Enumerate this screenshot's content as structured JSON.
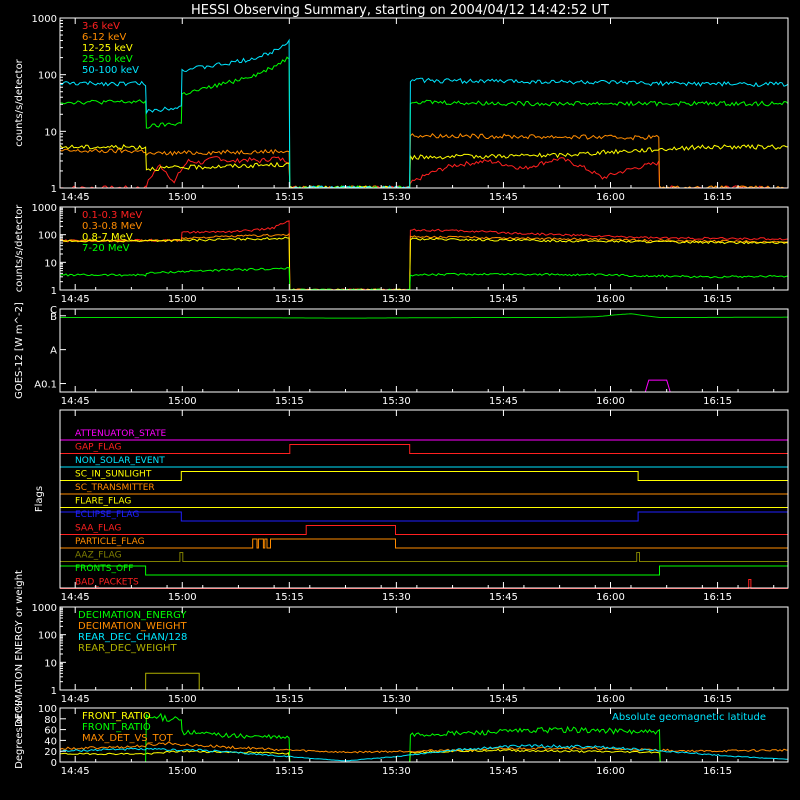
{
  "title": "HESSI Observing Summary, starting on 2004/04/12 14:42:52 UT",
  "x_ticks": [
    "14:45",
    "15:00",
    "15:15",
    "15:30",
    "15:45",
    "16:00",
    "16:15"
  ],
  "x_tick_minutes": [
    2.13,
    17.13,
    32.13,
    47.13,
    62.13,
    77.13,
    92.13
  ],
  "x_range_minutes": [
    0,
    102
  ],
  "chart_data": [
    {
      "type": "line",
      "id": "lowE",
      "ylabel": "counts/s/detector",
      "yscale": "log",
      "ylim": [
        1,
        1000
      ],
      "yticks": [
        "1",
        "10",
        "100",
        "1000"
      ],
      "ytick_values": [
        1,
        10,
        100,
        1000
      ],
      "legend_position": "top-left",
      "series": [
        {
          "name": "3-6 keV",
          "color": "#ff2020",
          "x": [
            0,
            12.0,
            12.1,
            14,
            16,
            18,
            20,
            22,
            24,
            26,
            28,
            30,
            32.1,
            32.2,
            49,
            49.1,
            55,
            60,
            65,
            70,
            76,
            83.9,
            84,
            102
          ],
          "y": [
            1,
            1,
            1.1,
            2.5,
            1.2,
            3,
            2.8,
            3.5,
            2.9,
            3.2,
            3.0,
            3.4,
            3.0,
            1,
            1,
            1.2,
            2.5,
            3,
            2.2,
            3.3,
            1.5,
            2.8,
            1,
            1
          ]
        },
        {
          "name": "6-12 keV",
          "color": "#ff8c00",
          "x": [
            0,
            12.0,
            12.1,
            18,
            24,
            32.1,
            32.2,
            49,
            49.1,
            60,
            70,
            80,
            83.9,
            84,
            102
          ],
          "y": [
            4.5,
            4.5,
            4.0,
            4.2,
            4.3,
            4.5,
            1,
            1,
            8.5,
            8.2,
            8.0,
            7.8,
            8.0,
            1,
            1
          ]
        },
        {
          "name": "12-25 keV",
          "color": "#ffff00",
          "x": [
            0,
            12.0,
            12.1,
            32.1,
            32.2,
            49,
            49.1,
            70,
            90,
            102
          ],
          "y": [
            5.3,
            5.3,
            2.2,
            2.6,
            1,
            1,
            3.5,
            3.8,
            5.3,
            5.3
          ]
        },
        {
          "name": "25-50 keV",
          "color": "#00ff00",
          "x": [
            0,
            12.0,
            12.1,
            17,
            17.1,
            20,
            24,
            28,
            30,
            32.1,
            32.2,
            49,
            49.1,
            55,
            65,
            75,
            85,
            95,
            102
          ],
          "y": [
            33,
            33,
            12,
            14,
            45,
            55,
            75,
            105,
            140,
            200,
            1,
            1,
            34,
            32,
            31,
            31,
            31,
            31,
            31
          ]
        },
        {
          "name": "50-100 keV",
          "color": "#00e5ff",
          "x": [
            0,
            12.0,
            12.1,
            17,
            17.1,
            20,
            24,
            28,
            30,
            32.1,
            32.2,
            49,
            49.1,
            55,
            65,
            75,
            85,
            95,
            102
          ],
          "y": [
            70,
            70,
            22,
            28,
            120,
            135,
            160,
            205,
            260,
            400,
            1,
            1,
            80,
            78,
            76,
            73,
            70,
            68,
            68
          ]
        }
      ]
    },
    {
      "type": "line",
      "id": "highE",
      "ylabel": "counts/s/detector",
      "yscale": "log",
      "ylim": [
        1,
        1000
      ],
      "yticks": [
        "1",
        "10",
        "100",
        "1000"
      ],
      "ytick_values": [
        1,
        10,
        100,
        1000
      ],
      "legend_position": "top-left",
      "series": [
        {
          "name": "0.1-0.3 MeV",
          "color": "#ff2020",
          "x": [
            0,
            10,
            15,
            17,
            17.1,
            24,
            28,
            30,
            32.1,
            32.2,
            49,
            49.1,
            55,
            65,
            75,
            85,
            102
          ],
          "y": [
            60,
            62,
            64,
            65,
            120,
            130,
            150,
            180,
            300,
            1,
            1,
            150,
            140,
            110,
            90,
            75,
            70
          ]
        },
        {
          "name": "0.3-0.8 MeV",
          "color": "#ff8c00",
          "x": [
            0,
            17,
            17.1,
            32.1,
            32.2,
            49,
            49.1,
            65,
            85,
            102
          ],
          "y": [
            60,
            62,
            75,
            100,
            1,
            1,
            85,
            75,
            60,
            55
          ]
        },
        {
          "name": "0.8-7 MeV",
          "color": "#ffff00",
          "x": [
            0,
            17,
            32.1,
            32.2,
            49,
            49.1,
            65,
            85,
            102
          ],
          "y": [
            58,
            62,
            75,
            1,
            1,
            70,
            62,
            55,
            50
          ]
        },
        {
          "name": "7-20 MeV",
          "color": "#00ff00",
          "x": [
            0,
            12,
            12.1,
            20,
            32.1,
            32.2,
            49,
            49.1,
            60,
            75,
            90,
            102
          ],
          "y": [
            3.5,
            3.5,
            4,
            5,
            6,
            1,
            1,
            3.5,
            3.8,
            3.5,
            3.0,
            3.2
          ]
        }
      ]
    },
    {
      "type": "line",
      "id": "goes",
      "ylabel": "GOES-12 [W m^-2]",
      "yscale": "log",
      "ylim": [
        -8.25,
        -5.8
      ],
      "yticks": [
        "A0.1",
        "A",
        "B",
        "C"
      ],
      "ytick_values": [
        -8,
        -7,
        -6,
        -5
      ],
      "series": [
        {
          "name": "",
          "color": "#00dd00",
          "x": [
            0,
            20,
            40,
            60,
            70,
            75,
            78,
            80,
            82,
            84,
            90,
            102
          ],
          "y": [
            -6.05,
            -6.05,
            -6.07,
            -6.05,
            -6.05,
            -6.03,
            -5.97,
            -5.94,
            -6.0,
            -6.05,
            -6.05,
            -6.04
          ]
        },
        {
          "name": "",
          "color": "#ff00ff",
          "x": [
            0,
            82,
            82.5,
            85,
            85.5,
            102
          ],
          "y": [
            -8.25,
            -8.25,
            -7.9,
            -7.9,
            -8.25,
            -8.25
          ]
        }
      ]
    },
    {
      "type": "step",
      "id": "flags",
      "ylabel": "Flags",
      "flags": [
        {
          "name": "ATTENUATOR_STATE",
          "color": "#ff00ff",
          "changes": []
        },
        {
          "name": "GAP_FLAG",
          "color": "#ff2020",
          "changes": [
            [
              32.2,
              1
            ],
            [
              49,
              0
            ]
          ]
        },
        {
          "name": "NON_SOLAR_EVENT",
          "color": "#00e5ff",
          "changes": []
        },
        {
          "name": "SC_IN_SUNLIGHT",
          "color": "#ffff00",
          "changes": [
            [
              0,
              0
            ],
            [
              17,
              1
            ],
            [
              81,
              0
            ]
          ]
        },
        {
          "name": "SC_TRANSMITTER",
          "color": "#ff8c00",
          "changes": []
        },
        {
          "name": "FLARE_FLAG",
          "color": "#ffff00",
          "changes": []
        },
        {
          "name": "ECLIPSE_FLAG",
          "color": "#2020ff",
          "changes": [
            [
              0,
              1
            ],
            [
              17,
              0
            ],
            [
              81,
              1
            ]
          ]
        },
        {
          "name": "SAA_FLAG",
          "color": "#ff2020",
          "changes": [
            [
              34.5,
              1
            ],
            [
              47,
              0
            ]
          ]
        },
        {
          "name": "PARTICLE_FLAG",
          "color": "#ff8c00",
          "changes": [
            [
              27,
              1
            ],
            [
              27.6,
              0
            ],
            [
              27.8,
              1
            ],
            [
              28.5,
              0
            ],
            [
              28.7,
              1
            ],
            [
              29,
              0
            ],
            [
              29.5,
              1
            ],
            [
              47,
              0
            ]
          ]
        },
        {
          "name": "AAZ_FLAG",
          "color": "#808000",
          "changes": [
            [
              16.8,
              1
            ],
            [
              17.2,
              0
            ],
            [
              80.8,
              1
            ],
            [
              81.2,
              0
            ]
          ]
        },
        {
          "name": "FRONTS_OFF",
          "color": "#00ff00",
          "changes": [
            [
              0,
              1
            ],
            [
              12,
              0
            ],
            [
              84,
              1
            ]
          ]
        },
        {
          "name": "BAD_PACKETS",
          "color": "#ff2020",
          "changes": [
            [
              96.5,
              1
            ],
            [
              96.8,
              0
            ]
          ]
        }
      ]
    },
    {
      "type": "step",
      "id": "decimation",
      "ylabel": "DECIMATION ENERGY or weight",
      "yscale": "log",
      "ylim": [
        1,
        1000
      ],
      "yticks": [
        "1",
        "10",
        "100",
        "1000"
      ],
      "ytick_values": [
        1,
        10,
        100,
        1000
      ],
      "legend_position": "top-left",
      "series": [
        {
          "name": "DECIMATION_ENERGY",
          "color": "#00ff00",
          "x": [],
          "y": []
        },
        {
          "name": "DECIMATION_WEIGHT",
          "color": "#ff8c00",
          "x": [],
          "y": []
        },
        {
          "name": "REAR_DEC_CHAN/128",
          "color": "#00e5ff",
          "x": [],
          "y": []
        },
        {
          "name": "REAR_DEC_WEIGHT",
          "color": "#b0b000",
          "x": [
            0,
            12,
            12.01,
            19.5,
            19.51,
            102
          ],
          "y": [
            1,
            1,
            4,
            4,
            1,
            1
          ]
        }
      ]
    },
    {
      "type": "line",
      "id": "ratio",
      "ylabel": "Degrees or %",
      "ylim": [
        0,
        100
      ],
      "yticks": [
        "0",
        "20",
        "40",
        "60",
        "80",
        "100"
      ],
      "ytick_values": [
        0,
        20,
        40,
        60,
        80,
        100
      ],
      "legend_position": "top-left",
      "annotation": "Absolute geomagnetic latitude",
      "series": [
        {
          "name": "FRONT_RATIO",
          "color": "#ffff00",
          "x": [
            0,
            12,
            17,
            25,
            32,
            32.2,
            49,
            49.1,
            60,
            70,
            84,
            84.1,
            102
          ],
          "y": [
            15,
            15,
            20,
            18,
            16,
            0,
            0,
            18,
            22,
            20,
            18,
            0,
            0
          ]
        },
        {
          "name": "FRONT_RATIO",
          "color": "#00ff00",
          "x": [
            0,
            12,
            12.1,
            17,
            17.1,
            25,
            32.1,
            32.2,
            49,
            49.1,
            60,
            70,
            84,
            84.1,
            102
          ],
          "y": [
            0,
            0,
            82,
            82,
            55,
            48,
            45,
            0,
            0,
            50,
            55,
            60,
            55,
            0,
            0
          ]
        },
        {
          "name": "MAX_DET_VS_TOT",
          "color": "#ff8c00",
          "x": [
            0,
            10,
            15,
            20,
            32,
            40,
            49,
            60,
            70,
            84,
            90,
            102
          ],
          "y": [
            25,
            28,
            35,
            30,
            22,
            18,
            20,
            24,
            26,
            22,
            20,
            22
          ]
        },
        {
          "name": "",
          "color": "#00e5ff",
          "x": [
            0,
            8,
            20,
            32,
            40,
            47,
            55,
            65,
            75,
            85,
            95,
            102
          ],
          "y": [
            20,
            24,
            22,
            10,
            2,
            10,
            22,
            30,
            28,
            20,
            10,
            5
          ]
        }
      ]
    }
  ]
}
